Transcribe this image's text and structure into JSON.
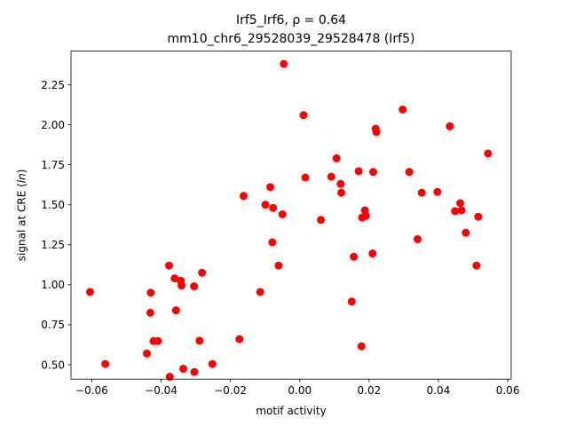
{
  "chart_data": {
    "type": "scatter",
    "title": "Irf5_Irf6, ρ = 0.64",
    "subtitle": "mm10_chr6_29528039_29528478 (Irf5)",
    "xlabel": "motif activity",
    "ylabel_prefix": "signal at CRE (",
    "ylabel_italic": "ln",
    "ylabel_suffix": ")",
    "xlim": [
      -0.066,
      0.061
    ],
    "ylim": [
      0.41,
      2.46
    ],
    "xticks": [
      -0.06,
      -0.04,
      -0.02,
      0.0,
      0.02,
      0.04,
      0.06
    ],
    "xtick_labels": [
      "−0.06",
      "−0.04",
      "−0.02",
      "0.00",
      "0.02",
      "0.04",
      "0.06"
    ],
    "yticks": [
      0.5,
      0.75,
      1.0,
      1.25,
      1.5,
      1.75,
      2.0,
      2.25
    ],
    "ytick_labels": [
      "0.50",
      "0.75",
      "1.00",
      "1.25",
      "1.50",
      "1.75",
      "2.00",
      "2.25"
    ],
    "grid": false,
    "color": "#ff0000",
    "points": [
      {
        "x": -0.0605,
        "y": 0.955
      },
      {
        "x": -0.0561,
        "y": 0.505
      },
      {
        "x": -0.0441,
        "y": 0.57
      },
      {
        "x": -0.0431,
        "y": 0.825
      },
      {
        "x": -0.043,
        "y": 0.95
      },
      {
        "x": -0.0422,
        "y": 0.648
      },
      {
        "x": -0.0409,
        "y": 0.648
      },
      {
        "x": -0.0377,
        "y": 1.12
      },
      {
        "x": -0.0375,
        "y": 0.425
      },
      {
        "x": -0.0361,
        "y": 1.04
      },
      {
        "x": -0.0357,
        "y": 0.84
      },
      {
        "x": -0.0343,
        "y": 1.025
      },
      {
        "x": -0.0341,
        "y": 0.995
      },
      {
        "x": -0.0336,
        "y": 0.475
      },
      {
        "x": -0.0305,
        "y": 0.99
      },
      {
        "x": -0.0304,
        "y": 0.455
      },
      {
        "x": -0.0289,
        "y": 0.65
      },
      {
        "x": -0.0282,
        "y": 1.075
      },
      {
        "x": -0.0252,
        "y": 0.505
      },
      {
        "x": -0.0174,
        "y": 0.66
      },
      {
        "x": -0.0162,
        "y": 1.555
      },
      {
        "x": -0.0114,
        "y": 0.955
      },
      {
        "x": -0.0099,
        "y": 1.5
      },
      {
        "x": -0.0085,
        "y": 1.61
      },
      {
        "x": -0.0079,
        "y": 1.265
      },
      {
        "x": -0.0077,
        "y": 1.48
      },
      {
        "x": -0.0061,
        "y": 1.12
      },
      {
        "x": -0.005,
        "y": 1.44
      },
      {
        "x": -0.0046,
        "y": 2.38
      },
      {
        "x": 0.0011,
        "y": 2.06
      },
      {
        "x": 0.0016,
        "y": 1.67
      },
      {
        "x": 0.0061,
        "y": 1.405
      },
      {
        "x": 0.0091,
        "y": 1.675
      },
      {
        "x": 0.0106,
        "y": 1.79
      },
      {
        "x": 0.0118,
        "y": 1.63
      },
      {
        "x": 0.012,
        "y": 1.575
      },
      {
        "x": 0.015,
        "y": 0.895
      },
      {
        "x": 0.0156,
        "y": 1.175
      },
      {
        "x": 0.017,
        "y": 1.71
      },
      {
        "x": 0.0178,
        "y": 0.615
      },
      {
        "x": 0.018,
        "y": 1.42
      },
      {
        "x": 0.0188,
        "y": 1.465
      },
      {
        "x": 0.0191,
        "y": 1.43
      },
      {
        "x": 0.021,
        "y": 1.195
      },
      {
        "x": 0.0212,
        "y": 1.705
      },
      {
        "x": 0.0219,
        "y": 1.975
      },
      {
        "x": 0.0221,
        "y": 1.955
      },
      {
        "x": 0.0297,
        "y": 2.095
      },
      {
        "x": 0.0316,
        "y": 1.705
      },
      {
        "x": 0.034,
        "y": 1.285
      },
      {
        "x": 0.0352,
        "y": 1.575
      },
      {
        "x": 0.0397,
        "y": 1.58
      },
      {
        "x": 0.0433,
        "y": 1.99
      },
      {
        "x": 0.0448,
        "y": 1.46
      },
      {
        "x": 0.0463,
        "y": 1.51
      },
      {
        "x": 0.0467,
        "y": 1.465
      },
      {
        "x": 0.0479,
        "y": 1.325
      },
      {
        "x": 0.051,
        "y": 1.12
      },
      {
        "x": 0.0515,
        "y": 1.425
      },
      {
        "x": 0.0543,
        "y": 1.82
      }
    ]
  }
}
